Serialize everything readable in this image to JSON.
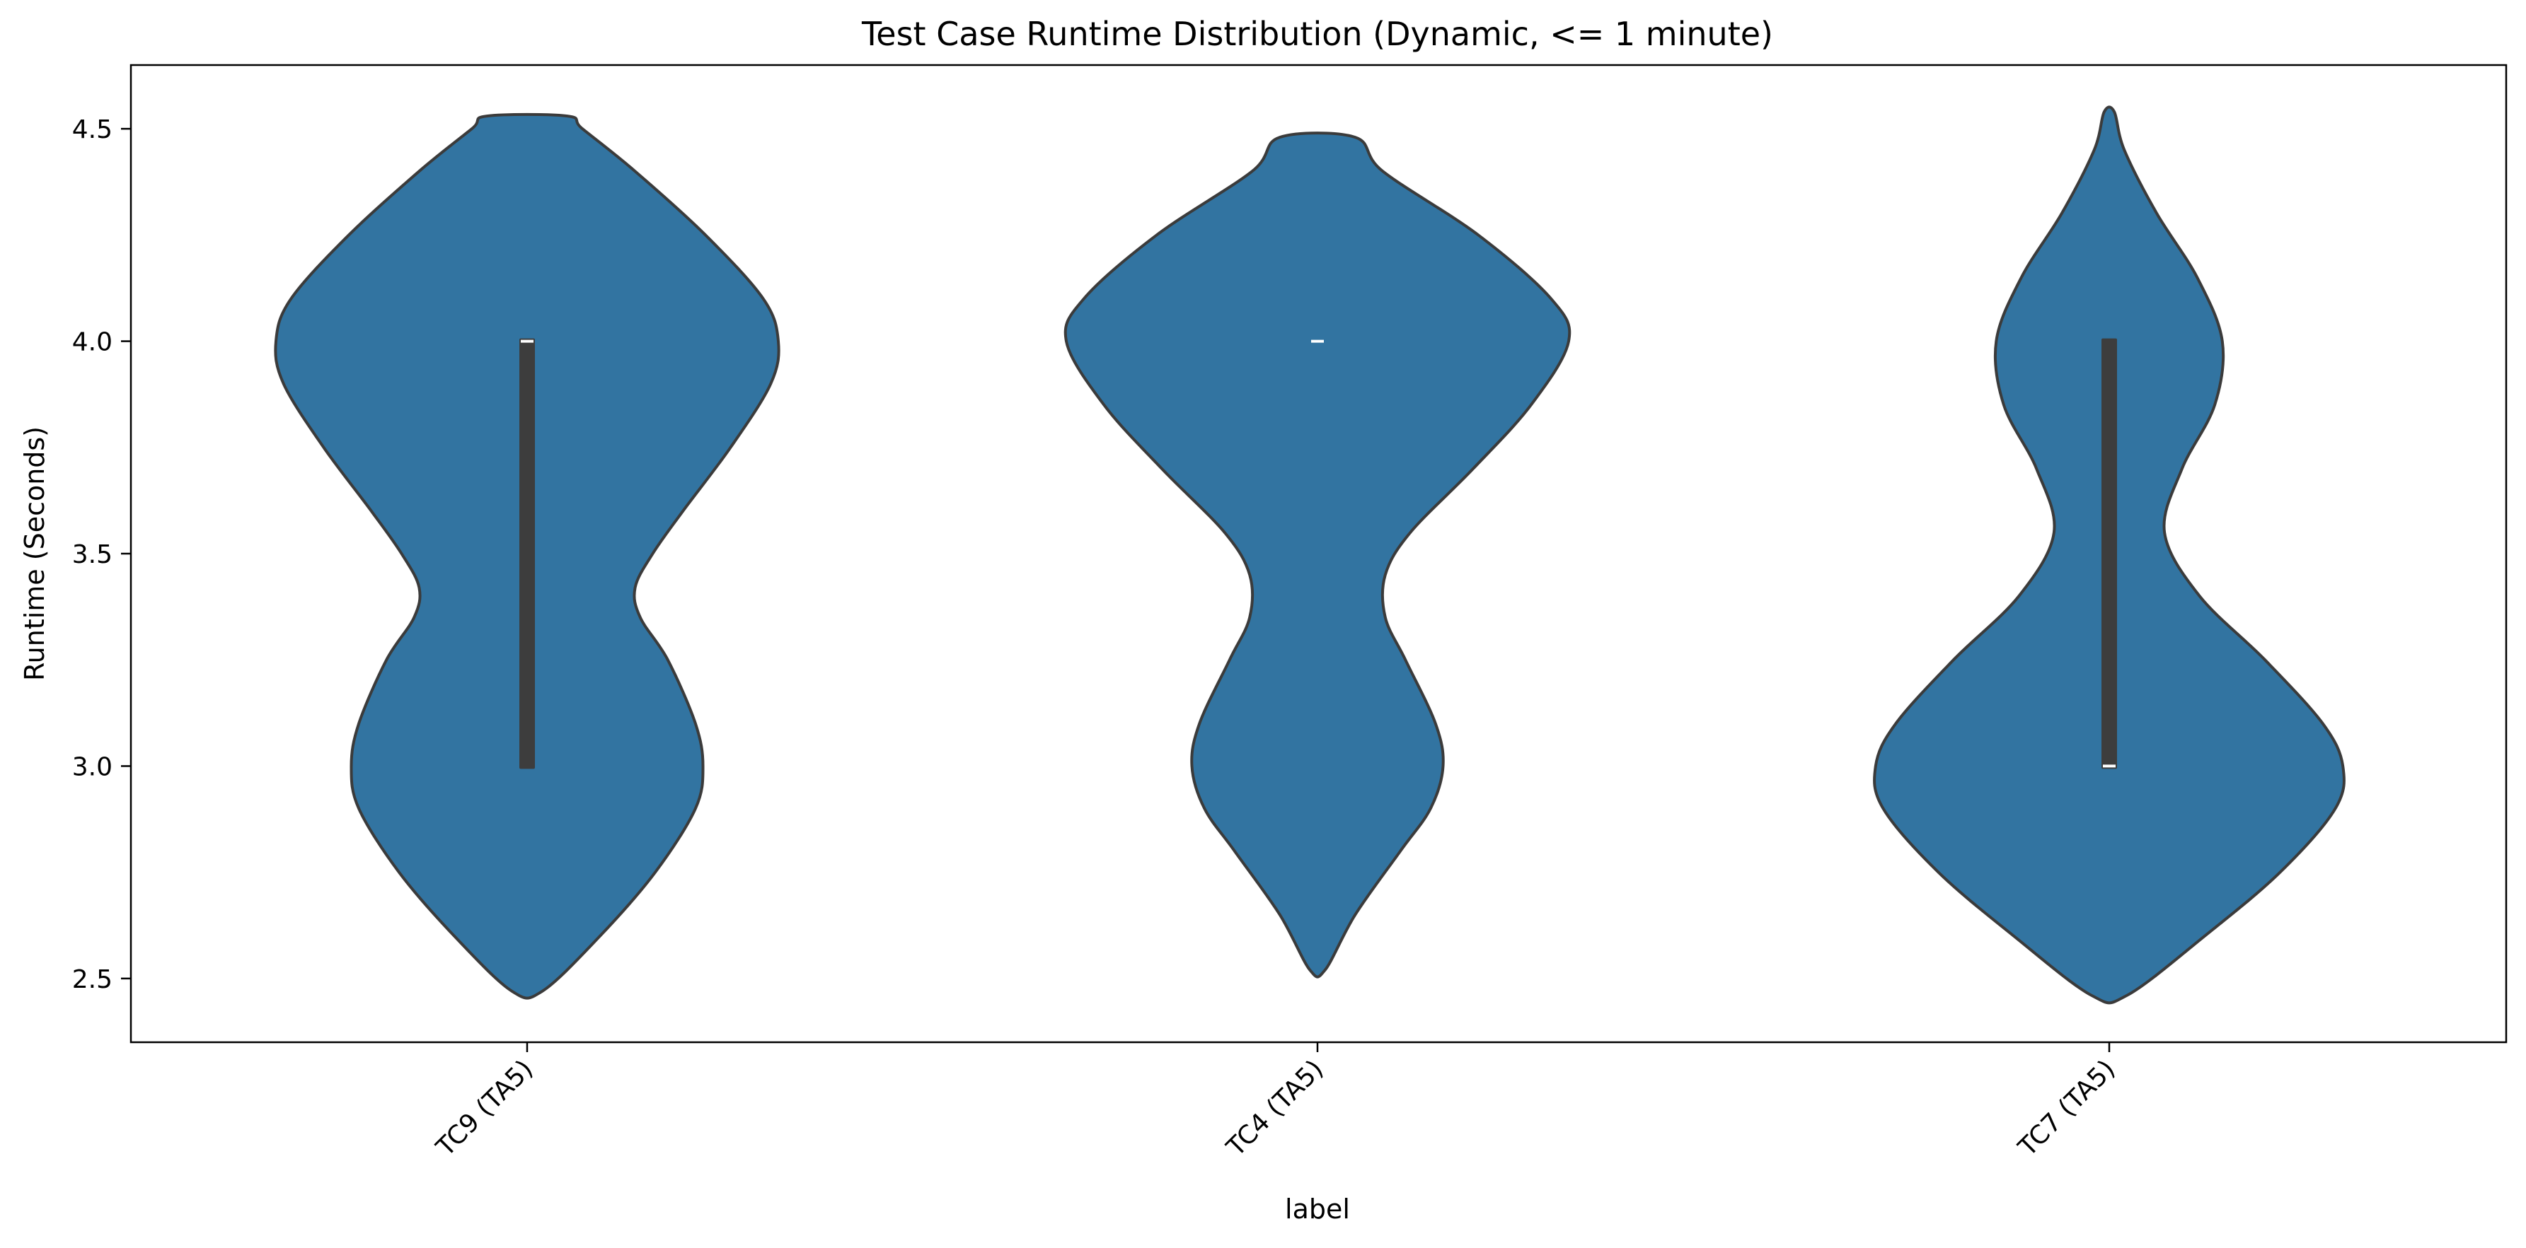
{
  "chart_data": {
    "type": "violin",
    "title": "Test Case Runtime Distribution (Dynamic, <= 1 minute)",
    "xlabel": "label",
    "ylabel": "Runtime (Seconds)",
    "categories": [
      "TC9 (TA5)",
      "TC4 (TA5)",
      "TC7 (TA5)"
    ],
    "ylim": [
      2.35,
      4.65
    ],
    "yticks": [
      2.5,
      3.0,
      3.5,
      4.0,
      4.5
    ],
    "ytick_labels": [
      "2.5",
      "3.0",
      "3.5",
      "4.0",
      "4.5"
    ],
    "grid": false,
    "color": "#3274a1",
    "edge_color": "#3b3b3b",
    "box_color": "#3d3d3d",
    "series": [
      {
        "category": "TC9 (TA5)",
        "min": 2.47,
        "max": 4.53,
        "median": 4.0,
        "q1": 3.0,
        "q3": 4.0,
        "density": [
          [
            2.47,
            0.06
          ],
          [
            2.6,
            0.29
          ],
          [
            2.75,
            0.51
          ],
          [
            2.9,
            0.67
          ],
          [
            3.0,
            0.7
          ],
          [
            3.1,
            0.67
          ],
          [
            3.25,
            0.56
          ],
          [
            3.35,
            0.45
          ],
          [
            3.42,
            0.43
          ],
          [
            3.5,
            0.5
          ],
          [
            3.6,
            0.62
          ],
          [
            3.75,
            0.81
          ],
          [
            3.9,
            0.97
          ],
          [
            4.0,
            1.0
          ],
          [
            4.1,
            0.94
          ],
          [
            4.25,
            0.71
          ],
          [
            4.4,
            0.43
          ],
          [
            4.5,
            0.22
          ],
          [
            4.53,
            0.16
          ]
        ]
      },
      {
        "category": "TC4 (TA5)",
        "min": 2.52,
        "max": 4.48,
        "median": 4.0,
        "q1": 4.0,
        "q3": 4.0,
        "density": [
          [
            2.52,
            0.03
          ],
          [
            2.65,
            0.15
          ],
          [
            2.8,
            0.33
          ],
          [
            2.9,
            0.45
          ],
          [
            3.0,
            0.5
          ],
          [
            3.1,
            0.47
          ],
          [
            3.25,
            0.35
          ],
          [
            3.35,
            0.27
          ],
          [
            3.45,
            0.27
          ],
          [
            3.55,
            0.37
          ],
          [
            3.7,
            0.62
          ],
          [
            3.85,
            0.85
          ],
          [
            4.0,
            1.0
          ],
          [
            4.1,
            0.93
          ],
          [
            4.25,
            0.64
          ],
          [
            4.4,
            0.26
          ],
          [
            4.48,
            0.15
          ]
        ]
      },
      {
        "category": "TC7 (TA5)",
        "min": 2.46,
        "max": 4.54,
        "median": 3.0,
        "q1": 3.0,
        "q3": 4.0,
        "density": [
          [
            2.46,
            0.07
          ],
          [
            2.6,
            0.38
          ],
          [
            2.75,
            0.68
          ],
          [
            2.9,
            0.9
          ],
          [
            3.0,
            0.93
          ],
          [
            3.1,
            0.85
          ],
          [
            3.25,
            0.62
          ],
          [
            3.4,
            0.36
          ],
          [
            3.55,
            0.22
          ],
          [
            3.7,
            0.29
          ],
          [
            3.85,
            0.42
          ],
          [
            4.0,
            0.45
          ],
          [
            4.15,
            0.35
          ],
          [
            4.3,
            0.19
          ],
          [
            4.45,
            0.06
          ],
          [
            4.54,
            0.02
          ]
        ]
      }
    ]
  }
}
